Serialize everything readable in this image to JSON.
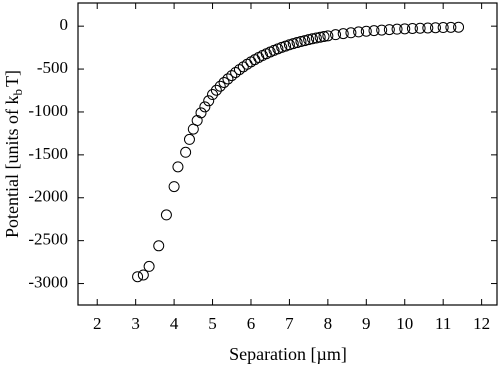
{
  "chart_data": {
    "type": "scatter",
    "xlabel": "Separation [µm]",
    "ylabel": [
      "Potential [units of k",
      "b",
      "T]"
    ],
    "x": [
      3.05,
      3.2,
      3.35,
      3.6,
      3.8,
      4.0,
      4.1,
      4.3,
      4.4,
      4.5,
      4.6,
      4.7,
      4.8,
      4.9,
      5.0,
      5.1,
      5.2,
      5.3,
      5.4,
      5.5,
      5.6,
      5.7,
      5.8,
      5.9,
      6.0,
      6.1,
      6.2,
      6.3,
      6.4,
      6.5,
      6.6,
      6.7,
      6.8,
      6.9,
      7.0,
      7.1,
      7.2,
      7.3,
      7.4,
      7.5,
      7.6,
      7.7,
      7.8,
      7.9,
      8.0,
      8.2,
      8.4,
      8.6,
      8.8,
      9.0,
      9.2,
      9.4,
      9.6,
      9.8,
      10.0,
      10.2,
      10.4,
      10.6,
      10.8,
      11.0,
      11.2,
      11.4
    ],
    "values": [
      -2920,
      -2900,
      -2800,
      -2560,
      -2200,
      -1870,
      -1640,
      -1470,
      -1320,
      -1200,
      -1100,
      -1010,
      -940,
      -870,
      -797,
      -747,
      -700,
      -656,
      -615,
      -576,
      -540,
      -506,
      -474,
      -444,
      -416,
      -390,
      -365,
      -342,
      -321,
      -301,
      -282,
      -264,
      -247,
      -232,
      -217,
      -204,
      -191,
      -179,
      -168,
      -157,
      -147,
      -138,
      -129,
      -121,
      -113,
      -99,
      -87,
      -77,
      -67,
      -59,
      -52,
      -46,
      -40,
      -35,
      -31,
      -27,
      -24,
      -21,
      -18,
      -16,
      -14,
      -12
    ],
    "color": "#000000",
    "xlim": [
      1.5,
      12.4
    ],
    "xticks": [
      2,
      3,
      4,
      5,
      6,
      7,
      8,
      9,
      10,
      11,
      12
    ],
    "ylim": [
      -3250,
      270
    ],
    "yticks": [
      -3000,
      -2500,
      -2000,
      -1500,
      -1000,
      -500,
      0
    ]
  }
}
